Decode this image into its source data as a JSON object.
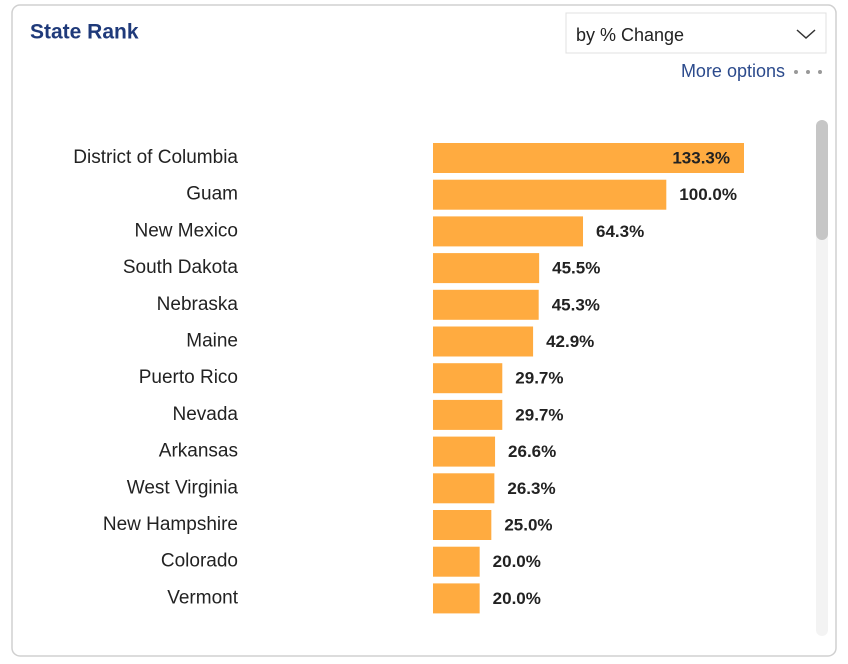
{
  "dropdown": "by % Change",
  "more_options": "More options",
  "chart_data": {
    "type": "bar",
    "orientation": "horizontal",
    "title": "State Rank",
    "categories": [
      "District of Columbia",
      "Guam",
      "New Mexico",
      "South Dakota",
      "Nebraska",
      "Maine",
      "Puerto Rico",
      "Nevada",
      "Arkansas",
      "West Virginia",
      "New Hampshire",
      "Colorado",
      "Vermont"
    ],
    "values": [
      133.3,
      100.0,
      64.3,
      45.5,
      45.3,
      42.9,
      29.7,
      29.7,
      26.6,
      26.3,
      25.0,
      20.0,
      20.0
    ],
    "value_labels": [
      "133.3%",
      "100.0%",
      "64.3%",
      "45.5%",
      "45.3%",
      "42.9%",
      "29.7%",
      "29.7%",
      "26.6%",
      "26.3%",
      "25.0%",
      "20.0%",
      "20.0%"
    ],
    "color": "#ffab40"
  }
}
